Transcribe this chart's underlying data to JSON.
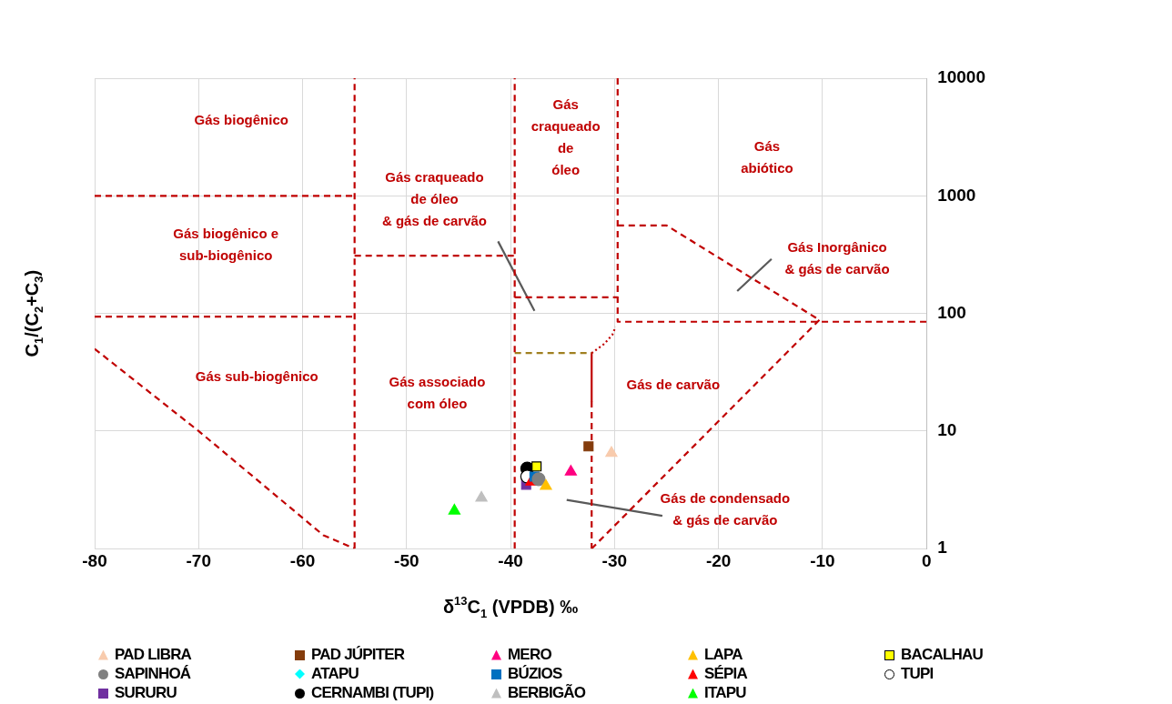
{
  "chart_data": {
    "type": "scatter",
    "xlabel": "δ$^{13}$C$_{1}$ (VPDB) ‰",
    "ylabel": "C$_{1}$/(C$_{2}$+C$_{3}$)",
    "xlim": [
      -80,
      0
    ],
    "xticks": [
      -80,
      -70,
      -60,
      -50,
      -40,
      -30,
      -20,
      -10,
      0
    ],
    "ylim": [
      1,
      10000
    ],
    "yticks": [
      1,
      10,
      100,
      1000,
      10000
    ],
    "log": "y",
    "grid": true,
    "legend": "bottom",
    "series": [
      {
        "name": "PAD LIBRA",
        "color": "#f8cbad",
        "marker": "triangle",
        "x": [
          -30.3
        ],
        "values": [
          6.5
        ]
      },
      {
        "name": "PAD JÚPITER",
        "color": "#843c0c",
        "marker": "square",
        "x": [
          -32.5
        ],
        "values": [
          7.4
        ]
      },
      {
        "name": "MERO",
        "color": "#ff0080",
        "marker": "triangle",
        "x": [
          -34.2
        ],
        "values": [
          4.5
        ]
      },
      {
        "name": "LAPA",
        "color": "#ffc000",
        "marker": "triangle",
        "x": [
          -36.6
        ],
        "values": [
          3.4
        ]
      },
      {
        "name": "BACALHAU",
        "color": "#ffff00",
        "marker": "square",
        "x": [
          -37.5
        ],
        "values": [
          5.0
        ]
      },
      {
        "name": "SAPINHOÁ",
        "color": "#808080",
        "marker": "circle",
        "x": [
          -37.3
        ],
        "values": [
          3.9
        ]
      },
      {
        "name": "ATAPU",
        "color": "#00ffff",
        "marker": "diamond",
        "x": [
          null
        ],
        "values": [
          null
        ]
      },
      {
        "name": "BÚZIOS",
        "color": "#0070c0",
        "marker": "square",
        "x": [
          -37.7
        ],
        "values": [
          4.1
        ]
      },
      {
        "name": "SÉPIA",
        "color": "#ff0000",
        "marker": "triangle",
        "x": [
          -38.0
        ],
        "values": [
          3.7
        ]
      },
      {
        "name": "TUPI",
        "color": "#ffffff",
        "marker": "circle",
        "x": [
          -38.4
        ],
        "values": [
          4.1
        ]
      },
      {
        "name": "SURURU",
        "color": "#7030a0",
        "marker": "square",
        "x": [
          -38.5
        ],
        "values": [
          3.5
        ]
      },
      {
        "name": "CERNAMBI (TUPI)",
        "color": "#000000",
        "marker": "circle",
        "x": [
          -38.4
        ],
        "values": [
          4.8
        ]
      },
      {
        "name": "BERBIGÃO",
        "color": "#bfbfbf",
        "marker": "triangle",
        "x": [
          -42.8
        ],
        "values": [
          2.7
        ]
      },
      {
        "name": "ITAPU",
        "color": "#00ff00",
        "marker": "triangle",
        "x": [
          -45.4
        ],
        "values": [
          2.1
        ]
      },
      {
        "type": "line",
        "color": "#c00000",
        "line_style": "dashed",
        "marker": "none",
        "x": [
          -55,
          -55
        ],
        "values": [
          1,
          10000
        ]
      },
      {
        "type": "line",
        "color": "#c00000",
        "line_style": "dashed",
        "marker": "none",
        "x": [
          -80,
          -55
        ],
        "values": [
          1000,
          1000
        ]
      },
      {
        "type": "line",
        "color": "#c00000",
        "line_style": "dashed",
        "marker": "none",
        "x": [
          -80,
          -55
        ],
        "values": [
          94,
          94
        ]
      },
      {
        "type": "line",
        "color": "#c00000",
        "line_style": "dashed",
        "marker": "none",
        "x": [
          -80,
          -70,
          -58,
          -55
        ],
        "values": [
          50,
          10,
          1.3,
          1
        ]
      },
      {
        "type": "line",
        "color": "#c00000",
        "line_style": "dashed",
        "marker": "none",
        "x": [
          -39.6,
          -39.6
        ],
        "values": [
          1,
          10000
        ]
      },
      {
        "type": "line",
        "color": "#c00000",
        "line_style": "dashed",
        "marker": "none",
        "x": [
          -55,
          -39.6
        ],
        "values": [
          310,
          310
        ]
      },
      {
        "type": "line",
        "color": "#c00000",
        "line_style": "dashed",
        "marker": "none",
        "x": [
          -29.7,
          -29.7,
          0
        ],
        "values": [
          10000,
          85,
          85
        ]
      },
      {
        "type": "line",
        "color": "#c00000",
        "line_style": "dashed",
        "marker": "none",
        "x": [
          -39.6,
          -29.7
        ],
        "values": [
          137,
          137
        ]
      },
      {
        "type": "line",
        "color": "#a08020",
        "line_style": "dashed",
        "marker": "none",
        "x": [
          -39.6,
          -32.2
        ],
        "values": [
          46,
          46
        ]
      },
      {
        "type": "line",
        "color": "#c00000",
        "line_style": "dotted",
        "marker": "none",
        "x": [
          -32.2,
          -31,
          -30.2,
          -29.9
        ],
        "values": [
          46,
          55,
          66,
          77
        ]
      },
      {
        "type": "line",
        "color": "#c00000",
        "line_style": "solid",
        "marker": "none",
        "x": [
          -32.2,
          -32.2
        ],
        "values": [
          46,
          18
        ]
      },
      {
        "type": "line",
        "color": "#c00000",
        "line_style": "dashed",
        "marker": "none",
        "x": [
          -32.2,
          -32.2
        ],
        "values": [
          18,
          1
        ]
      },
      {
        "type": "line",
        "color": "#c00000",
        "line_style": "dashed",
        "marker": "none",
        "x": [
          -29.7,
          -25,
          -10.3
        ],
        "values": [
          560,
          560,
          88
        ]
      },
      {
        "type": "line",
        "color": "#c00000",
        "line_style": "dashed",
        "marker": "none",
        "x": [
          -10.3,
          -32.2
        ],
        "values": [
          88,
          1
        ]
      },
      {
        "type": "line",
        "color": "#595959",
        "line_style": "solid",
        "marker": "none",
        "x": [
          -41.2,
          -37.7
        ],
        "values": [
          410,
          105
        ]
      },
      {
        "type": "line",
        "color": "#595959",
        "line_style": "solid",
        "marker": "none",
        "x": [
          -18.2,
          -14.9
        ],
        "values": [
          155,
          290
        ]
      },
      {
        "type": "line",
        "color": "#595959",
        "line_style": "solid",
        "marker": "none",
        "x": [
          -34.6,
          -25.4
        ],
        "values": [
          2.6,
          1.9
        ]
      }
    ],
    "annotations": [
      "Gás biogênico",
      "Gás biogênico e\nsub-biogênico",
      "Gás sub-biogênico",
      "Gás craqueado\nde óleo\n& gás de carvão",
      "Gás\ncraqueado\nde\nóleo",
      "Gás\nabiótico",
      "Gás Inorgânico\n& gás de carvão",
      "Gás associado\ncom óleo",
      "Gás de carvão",
      "Gás de condensado\n& gás de carvão"
    ]
  }
}
